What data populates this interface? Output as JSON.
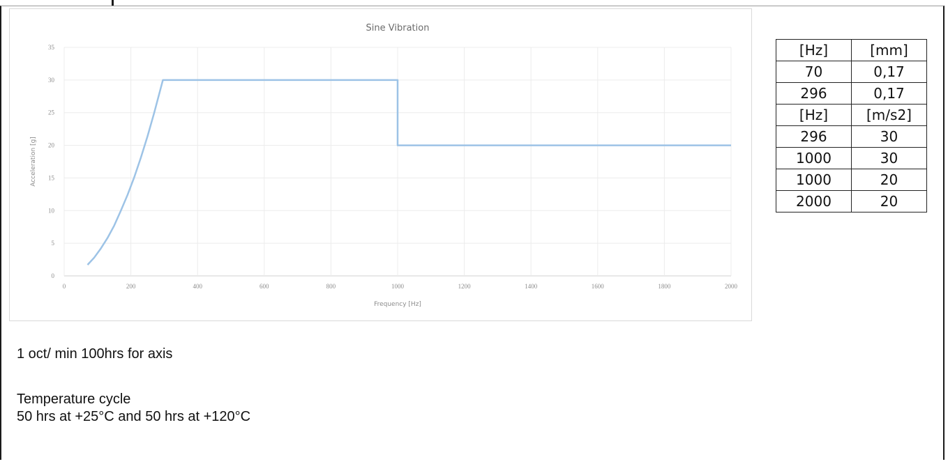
{
  "chart_data": {
    "type": "line",
    "title": "Sine Vibration",
    "xlabel": "Frequency [Hz]",
    "ylabel": "Acceleration [g]",
    "xlim": [
      0,
      2000
    ],
    "ylim": [
      0,
      35
    ],
    "x_ticks": [
      "0",
      "200",
      "400",
      "600",
      "800",
      "1000",
      "1200",
      "1400",
      "1600",
      "1800",
      "2000"
    ],
    "y_ticks": [
      "0",
      "5",
      "10",
      "15",
      "20",
      "25",
      "30",
      "35"
    ],
    "grid": true,
    "legend": "none",
    "line_color": "#9dc3e6",
    "series": [
      {
        "x": [
          70,
          90,
          110,
          130,
          150,
          170,
          190,
          210,
          230,
          250,
          270,
          296,
          1000,
          1000,
          2000
        ],
        "values": [
          1.7,
          2.8,
          4.2,
          5.8,
          7.7,
          10.0,
          12.4,
          15.1,
          18.1,
          21.4,
          25.0,
          30,
          30,
          20,
          20
        ]
      }
    ]
  },
  "table": {
    "rows": [
      [
        "[Hz]",
        "[mm]"
      ],
      [
        "70",
        "0,17"
      ],
      [
        "296",
        "0,17"
      ],
      [
        "[Hz]",
        "[m/s2]"
      ],
      [
        "296",
        "30"
      ],
      [
        "1000",
        "30"
      ],
      [
        "1000",
        "20"
      ],
      [
        "2000",
        "20"
      ]
    ]
  },
  "notes": {
    "line1": "1 oct/ min 100hrs for axis",
    "line2": "Temperature cycle",
    "line3": "50 hrs at +25°C and 50 hrs at +120°C"
  }
}
